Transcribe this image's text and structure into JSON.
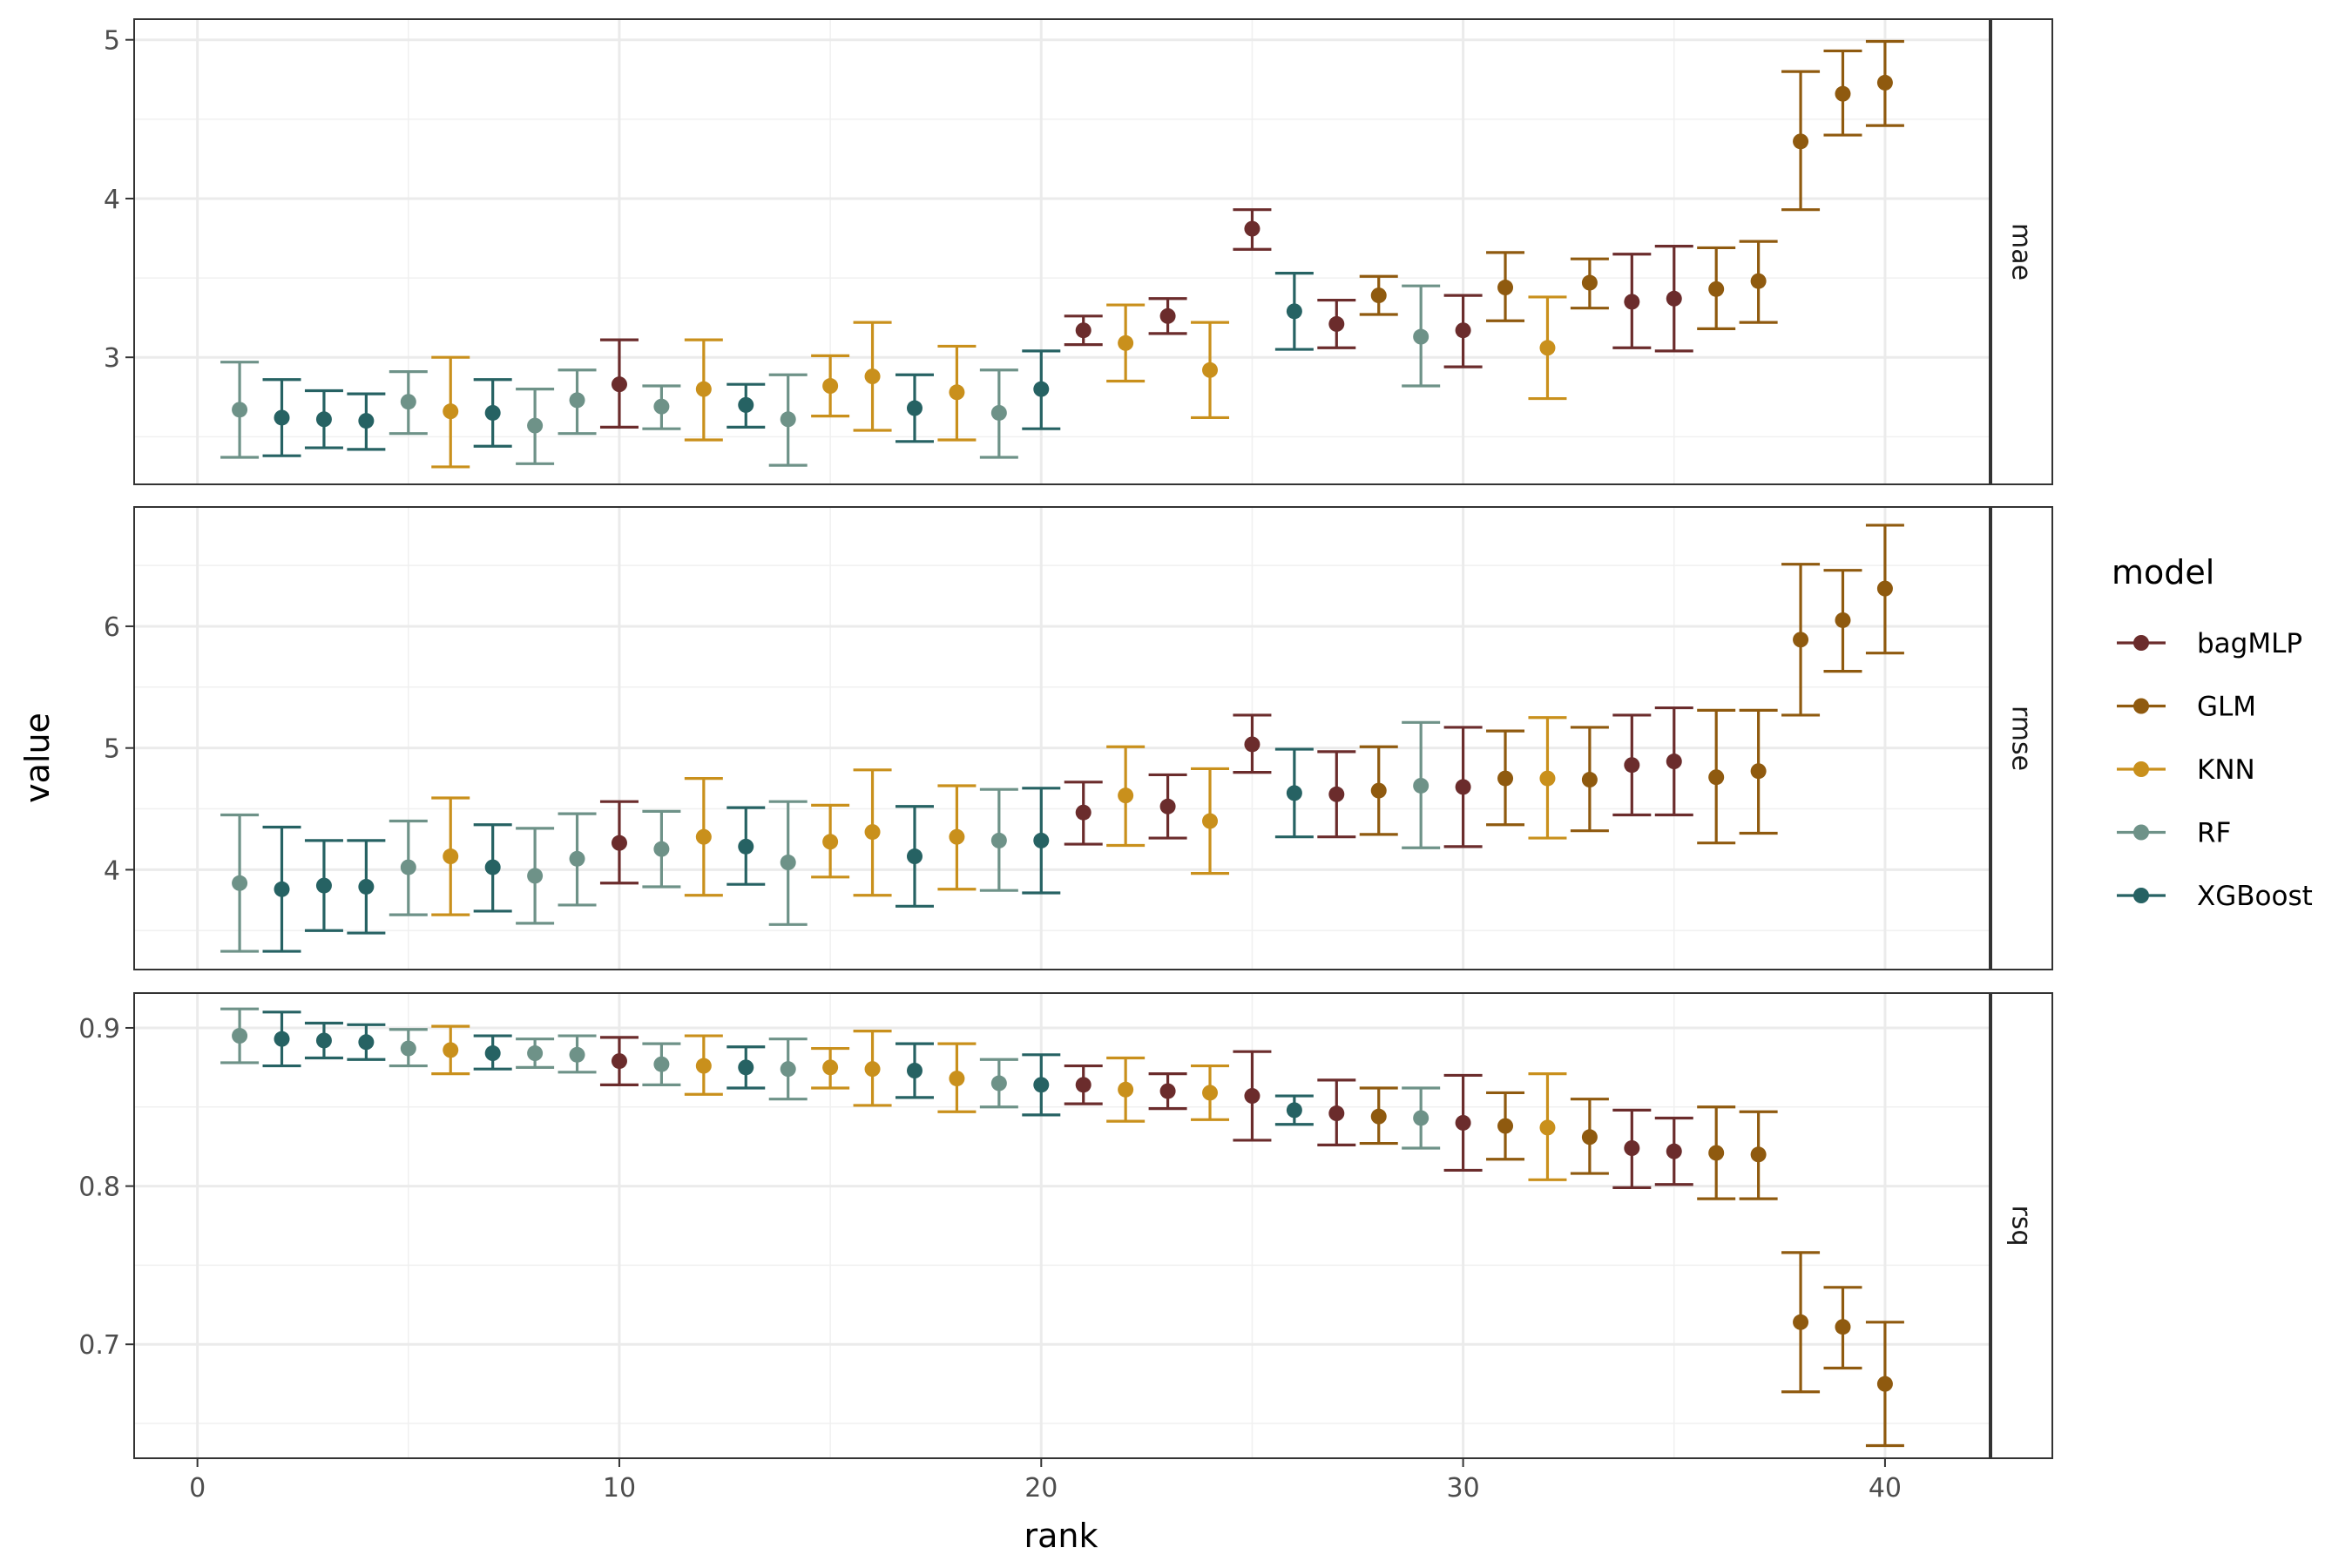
{
  "chart_data": {
    "type": "scatter",
    "subtype": "pointrange-faceted",
    "xlabel": "rank",
    "ylabel": "value",
    "xlim": [
      -1.5,
      42.5
    ],
    "x_ticks": [
      0,
      10,
      20,
      30,
      40
    ],
    "grid": true,
    "legend": {
      "title": "model",
      "placement": "right",
      "entries": [
        {
          "name": "bagMLP",
          "color": "#6b2c2c"
        },
        {
          "name": "GLM",
          "color": "#8f5a0f"
        },
        {
          "name": "KNN",
          "color": "#c9901c"
        },
        {
          "name": "RF",
          "color": "#6e9288"
        },
        {
          "name": "XGBoost",
          "color": "#266263"
        }
      ]
    },
    "rank_models": [
      "RF",
      "XGBoost",
      "XGBoost",
      "XGBoost",
      "RF",
      "KNN",
      "XGBoost",
      "RF",
      "RF",
      "bagMLP",
      "RF",
      "KNN",
      "XGBoost",
      "RF",
      "KNN",
      "KNN",
      "XGBoost",
      "KNN",
      "RF",
      "XGBoost",
      "bagMLP",
      "KNN",
      "bagMLP",
      "KNN",
      "bagMLP",
      "XGBoost",
      "bagMLP",
      "GLM",
      "RF",
      "bagMLP",
      "GLM",
      "KNN",
      "GLM",
      "bagMLP",
      "bagMLP",
      "GLM",
      "GLM",
      "GLM",
      "GLM",
      "GLM"
    ],
    "facets": [
      {
        "label": "mae",
        "ylim": [
          2.2,
          5.13
        ],
        "y_ticks": [
          3,
          4,
          5
        ],
        "y_tick_labels": [
          "3",
          "4",
          "5"
        ],
        "mean": [
          2.67,
          2.62,
          2.61,
          2.6,
          2.72,
          2.66,
          2.65,
          2.57,
          2.73,
          2.83,
          2.69,
          2.8,
          2.7,
          2.61,
          2.82,
          2.88,
          2.68,
          2.78,
          2.65,
          2.8,
          3.17,
          3.09,
          3.26,
          2.92,
          3.81,
          3.29,
          3.21,
          3.39,
          3.13,
          3.17,
          3.44,
          3.06,
          3.47,
          3.35,
          3.37,
          3.43,
          3.48,
          4.36,
          4.66,
          4.73
        ],
        "lower": [
          2.37,
          2.38,
          2.43,
          2.42,
          2.52,
          2.31,
          2.44,
          2.33,
          2.52,
          2.56,
          2.55,
          2.48,
          2.56,
          2.32,
          2.63,
          2.54,
          2.47,
          2.48,
          2.37,
          2.55,
          3.08,
          2.85,
          3.15,
          2.62,
          3.68,
          3.05,
          3.06,
          3.27,
          2.82,
          2.94,
          3.23,
          2.74,
          3.31,
          3.06,
          3.04,
          3.18,
          3.22,
          3.93,
          4.4,
          4.46
        ],
        "upper": [
          2.97,
          2.86,
          2.79,
          2.77,
          2.91,
          3.0,
          2.86,
          2.8,
          2.92,
          3.11,
          2.82,
          3.11,
          2.83,
          2.89,
          3.01,
          3.22,
          2.89,
          3.07,
          2.92,
          3.04,
          3.26,
          3.33,
          3.37,
          3.22,
          3.93,
          3.53,
          3.36,
          3.51,
          3.45,
          3.39,
          3.66,
          3.38,
          3.62,
          3.65,
          3.7,
          3.69,
          3.73,
          4.8,
          4.93,
          4.99
        ]
      },
      {
        "label": "rmse",
        "ylim": [
          3.18,
          6.98
        ],
        "y_ticks": [
          4,
          5,
          6
        ],
        "y_tick_labels": [
          "4",
          "5",
          "6"
        ],
        "mean": [
          3.89,
          3.84,
          3.87,
          3.86,
          4.02,
          4.11,
          4.02,
          3.95,
          4.09,
          4.22,
          4.17,
          4.27,
          4.19,
          4.06,
          4.23,
          4.31,
          4.11,
          4.27,
          4.24,
          4.24,
          4.47,
          4.61,
          4.52,
          4.4,
          5.03,
          4.63,
          4.62,
          4.65,
          4.69,
          4.68,
          4.75,
          4.75,
          4.74,
          4.86,
          4.89,
          4.76,
          4.81,
          5.89,
          6.05,
          6.31
        ],
        "lower": [
          3.33,
          3.33,
          3.5,
          3.48,
          3.63,
          3.63,
          3.66,
          3.56,
          3.71,
          3.89,
          3.86,
          3.79,
          3.88,
          3.55,
          3.94,
          3.79,
          3.7,
          3.84,
          3.83,
          3.81,
          4.21,
          4.2,
          4.26,
          3.97,
          4.8,
          4.27,
          4.27,
          4.29,
          4.18,
          4.19,
          4.37,
          4.26,
          4.32,
          4.45,
          4.45,
          4.22,
          4.3,
          5.27,
          5.63,
          5.78
        ],
        "upper": [
          4.45,
          4.35,
          4.24,
          4.24,
          4.4,
          4.59,
          4.37,
          4.34,
          4.46,
          4.56,
          4.48,
          4.75,
          4.51,
          4.56,
          4.53,
          4.82,
          4.52,
          4.69,
          4.66,
          4.67,
          4.72,
          5.01,
          4.78,
          4.83,
          5.27,
          4.99,
          4.97,
          5.01,
          5.21,
          5.17,
          5.14,
          5.25,
          5.17,
          5.27,
          5.33,
          5.31,
          5.31,
          6.51,
          6.46,
          6.83
        ]
      },
      {
        "label": "rsq",
        "ylim": [
          0.628,
          0.922
        ],
        "y_ticks": [
          0.7,
          0.8,
          0.9
        ],
        "y_tick_labels": [
          "0.7",
          "0.8",
          "0.9"
        ],
        "mean": [
          0.895,
          0.893,
          0.892,
          0.891,
          0.887,
          0.886,
          0.884,
          0.884,
          0.883,
          0.879,
          0.877,
          0.876,
          0.875,
          0.874,
          0.875,
          0.874,
          0.873,
          0.868,
          0.865,
          0.864,
          0.864,
          0.861,
          0.86,
          0.859,
          0.857,
          0.848,
          0.846,
          0.844,
          0.843,
          0.84,
          0.838,
          0.837,
          0.831,
          0.824,
          0.822,
          0.821,
          0.82,
          0.714,
          0.711,
          0.675
        ],
        "lower": [
          0.878,
          0.876,
          0.881,
          0.88,
          0.876,
          0.871,
          0.874,
          0.875,
          0.872,
          0.864,
          0.864,
          0.858,
          0.862,
          0.855,
          0.862,
          0.851,
          0.856,
          0.847,
          0.85,
          0.845,
          0.852,
          0.841,
          0.849,
          0.842,
          0.829,
          0.839,
          0.826,
          0.827,
          0.824,
          0.81,
          0.817,
          0.804,
          0.808,
          0.799,
          0.801,
          0.792,
          0.792,
          0.67,
          0.685,
          0.636
        ],
        "upper": [
          0.912,
          0.91,
          0.903,
          0.902,
          0.899,
          0.901,
          0.895,
          0.893,
          0.895,
          0.894,
          0.89,
          0.895,
          0.888,
          0.893,
          0.887,
          0.898,
          0.89,
          0.89,
          0.88,
          0.883,
          0.876,
          0.881,
          0.871,
          0.876,
          0.885,
          0.857,
          0.867,
          0.862,
          0.862,
          0.87,
          0.859,
          0.871,
          0.855,
          0.848,
          0.843,
          0.85,
          0.847,
          0.758,
          0.736,
          0.714
        ]
      }
    ]
  }
}
